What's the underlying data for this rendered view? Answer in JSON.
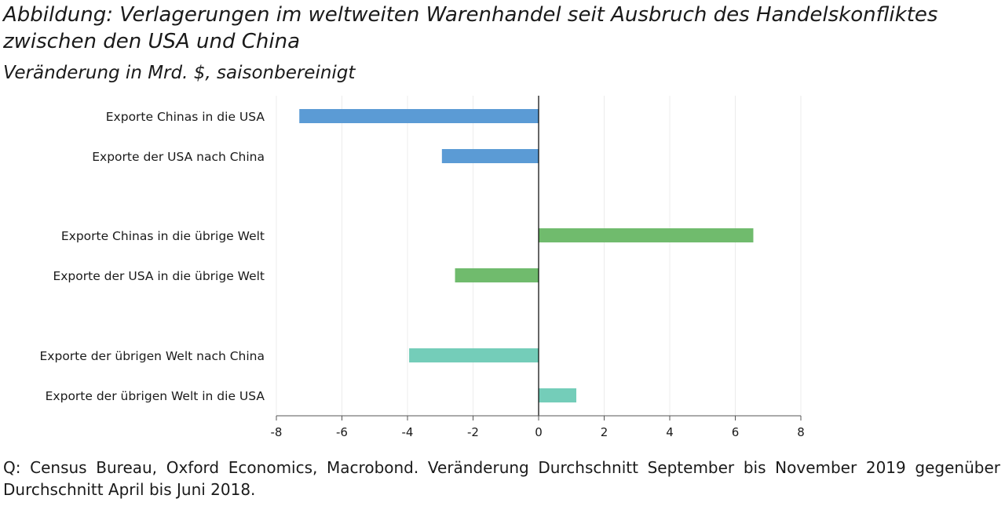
{
  "title": "Abbildung: Verlagerungen im weltweiten Warenhandel seit Ausbruch des Handelskonfliktes zwischen den USA und China",
  "subtitle": "Veränderung in Mrd. $, saisonbereinigt",
  "source": "Q: Census Bureau, Oxford Economics, Macrobond. Veränderung Durchschnitt September bis November 2019 gegenüber Durchschnitt April bis Juni 2018.",
  "chart_data": {
    "type": "bar",
    "orientation": "horizontal",
    "categories": [
      "Exporte Chinas in die USA",
      "Exporte der USA nach China",
      "Exporte Chinas in die übrige Welt",
      "Exporte der USA in die übrige Welt",
      "Exporte der übrigen Welt nach China",
      "Exporte der übrigen Welt in die USA"
    ],
    "values": [
      -7.3,
      -2.95,
      6.55,
      -2.55,
      -3.95,
      1.15
    ],
    "groups": [
      0,
      0,
      1,
      1,
      2,
      2
    ],
    "group_colors": [
      "#5b9bd5",
      "#70bb6d",
      "#74cdb9"
    ],
    "xlim": [
      -8,
      8
    ],
    "xticks": [
      -8,
      -6,
      -4,
      -2,
      0,
      2,
      4,
      6,
      8
    ],
    "grid": true,
    "legend": "none"
  }
}
